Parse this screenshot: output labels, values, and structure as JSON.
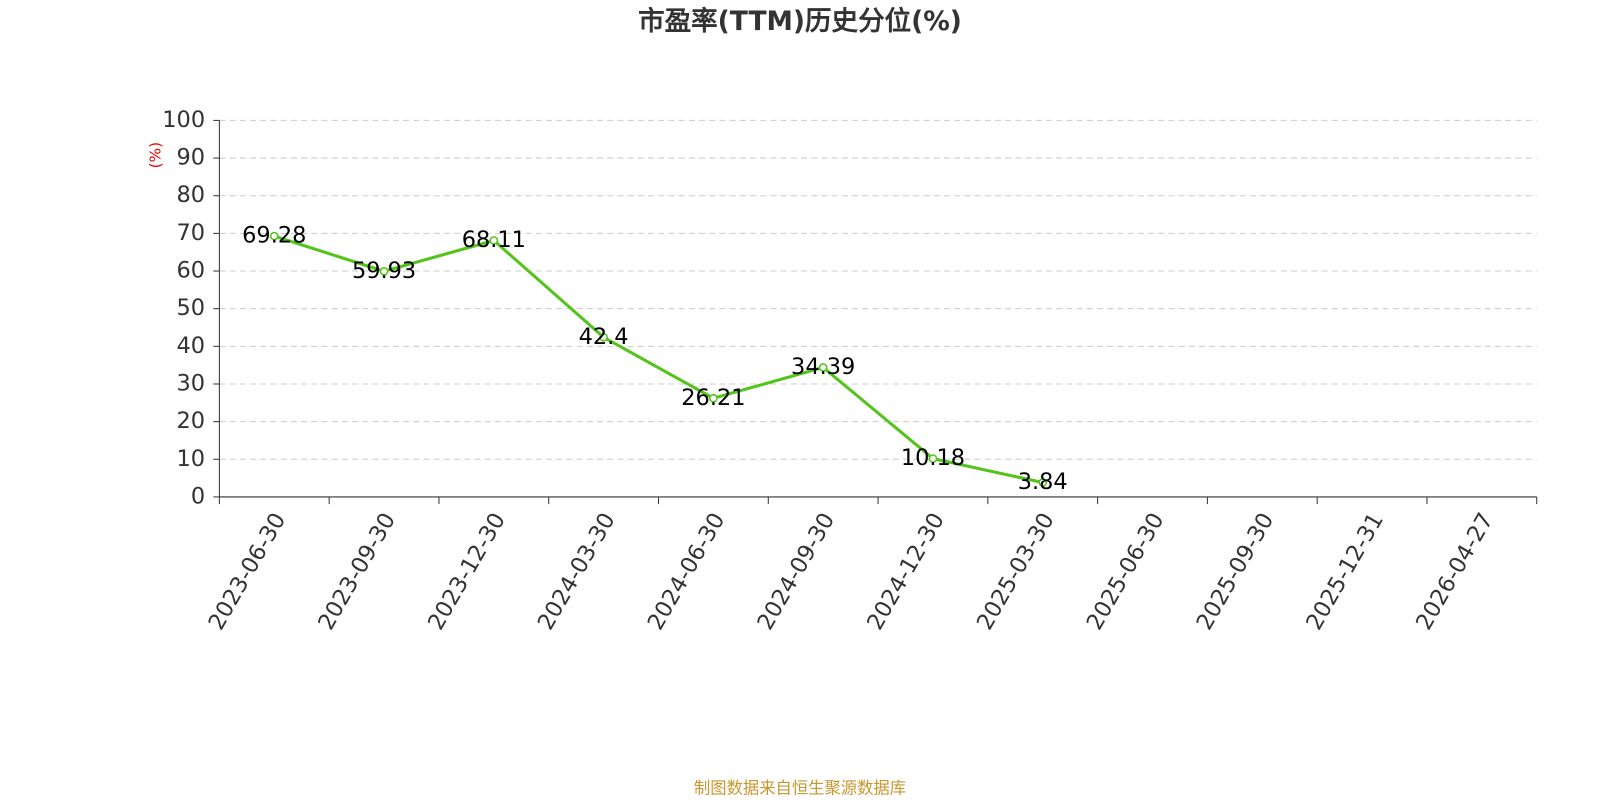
{
  "chart_data": {
    "type": "line",
    "title": "市盈率(TTM)历史分位(%)",
    "y_label": "(%)",
    "categories": [
      "2023-06-30",
      "2023-09-30",
      "2023-12-30",
      "2024-03-30",
      "2024-06-30",
      "2024-09-30",
      "2024-12-30",
      "2025-03-30",
      "2025-06-30",
      "2025-09-30",
      "2025-12-31",
      "2026-04-27"
    ],
    "values": [
      69.28,
      59.93,
      68.11,
      42.4,
      26.21,
      34.39,
      10.18,
      3.84,
      null,
      null,
      null,
      null
    ],
    "color": "#52c41a",
    "ylim": [
      0,
      100
    ],
    "yticks": [
      0,
      10,
      20,
      30,
      40,
      50,
      60,
      70,
      80,
      90,
      100
    ],
    "grid": true,
    "source": "制图数据来自恒生聚源数据库"
  }
}
